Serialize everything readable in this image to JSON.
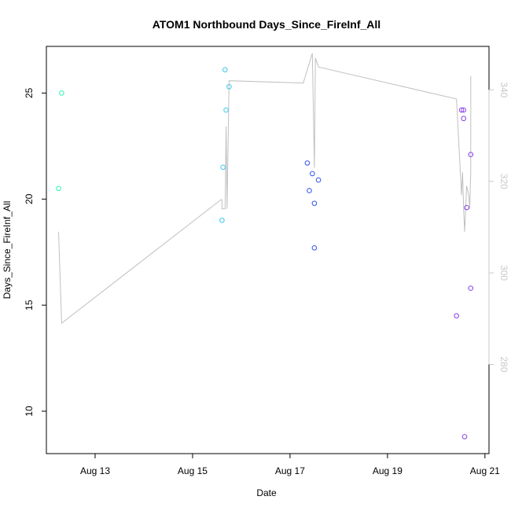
{
  "chart_data": {
    "type": "scatter",
    "title": "ATOM1 Northbound Days_Since_FireInf_All",
    "xlabel": "Date",
    "ylabel": "Days_Since_FireInf_All",
    "xlim": [
      "2021-08-12 00:00",
      "2021-08-21 02:00"
    ],
    "ylim": [
      8.0,
      27.2
    ],
    "y2lim": [
      260.5,
      349.5
    ],
    "x_ticks": [
      {
        "date": "2021-08-13",
        "label": "Aug 13"
      },
      {
        "date": "2021-08-15",
        "label": "Aug 15"
      },
      {
        "date": "2021-08-17",
        "label": "Aug 17"
      },
      {
        "date": "2021-08-19",
        "label": "Aug 19"
      },
      {
        "date": "2021-08-21",
        "label": "Aug 21"
      }
    ],
    "y_ticks": [
      10,
      15,
      20,
      25
    ],
    "y2_ticks": [
      280,
      300,
      320,
      340
    ],
    "grid": false,
    "series": [
      {
        "color": "#2cf5b5",
        "points": [
          {
            "x": "2021-08-12 06:00",
            "y": 20.5
          },
          {
            "x": "2021-08-12 07:30",
            "y": 25.0
          }
        ]
      },
      {
        "color": "#3cc8ee",
        "points": [
          {
            "x": "2021-08-15 14:30",
            "y": 19.0
          },
          {
            "x": "2021-08-15 15:00",
            "y": 21.5
          },
          {
            "x": "2021-08-15 16:30",
            "y": 24.2
          },
          {
            "x": "2021-08-15 16:00",
            "y": 26.1
          },
          {
            "x": "2021-08-15 18:00",
            "y": 25.3
          }
        ]
      },
      {
        "color": "#3552e8",
        "points": [
          {
            "x": "2021-08-17 08:30",
            "y": 21.7
          },
          {
            "x": "2021-08-17 09:30",
            "y": 20.4
          },
          {
            "x": "2021-08-17 11:00",
            "y": 21.2
          },
          {
            "x": "2021-08-17 12:00",
            "y": 19.8
          },
          {
            "x": "2021-08-17 12:00",
            "y": 17.7
          },
          {
            "x": "2021-08-17 14:00",
            "y": 20.9
          }
        ]
      },
      {
        "color": "#8b3fe8",
        "points": [
          {
            "x": "2021-08-20 10:00",
            "y": 14.5
          },
          {
            "x": "2021-08-20 12:30",
            "y": 24.2
          },
          {
            "x": "2021-08-20 13:30",
            "y": 24.2
          },
          {
            "x": "2021-08-20 13:30",
            "y": 23.8
          },
          {
            "x": "2021-08-20 14:00",
            "y": 8.8
          },
          {
            "x": "2021-08-20 15:00",
            "y": 19.6
          },
          {
            "x": "2021-08-20 17:00",
            "y": 22.1
          },
          {
            "x": "2021-08-20 17:00",
            "y": 15.8
          }
        ]
      }
    ],
    "line_series": {
      "axis": "right",
      "color": "#c0c0c0",
      "points": [
        {
          "x": "2021-08-12 06:00",
          "y2": 309
        },
        {
          "x": "2021-08-12 07:30",
          "y2": 289
        },
        {
          "x": "2021-08-15 14:00",
          "y2": 316
        },
        {
          "x": "2021-08-15 14:30",
          "y2": 316
        },
        {
          "x": "2021-08-15 14:30",
          "y2": 314
        },
        {
          "x": "2021-08-15 16:00",
          "y2": 314
        },
        {
          "x": "2021-08-15 16:30",
          "y2": 332
        },
        {
          "x": "2021-08-15 17:00",
          "y2": 314
        },
        {
          "x": "2021-08-15 18:00",
          "y2": 342
        },
        {
          "x": "2021-08-17 06:30",
          "y2": 341.5
        },
        {
          "x": "2021-08-17 11:00",
          "y2": 348
        },
        {
          "x": "2021-08-17 12:00",
          "y2": 323
        },
        {
          "x": "2021-08-17 12:30",
          "y2": 347
        },
        {
          "x": "2021-08-17 14:00",
          "y2": 345
        },
        {
          "x": "2021-08-20 10:00",
          "y2": 338
        },
        {
          "x": "2021-08-20 12:30",
          "y2": 317
        },
        {
          "x": "2021-08-20 13:00",
          "y2": 322
        },
        {
          "x": "2021-08-20 13:30",
          "y2": 314
        },
        {
          "x": "2021-08-20 14:00",
          "y2": 309
        },
        {
          "x": "2021-08-20 15:00",
          "y2": 319
        },
        {
          "x": "2021-08-20 16:00",
          "y2": 317
        },
        {
          "x": "2021-08-20 16:30",
          "y2": 314
        },
        {
          "x": "2021-08-20 17:00",
          "y2": 322
        },
        {
          "x": "2021-08-20 17:00",
          "y2": 343
        }
      ]
    }
  }
}
